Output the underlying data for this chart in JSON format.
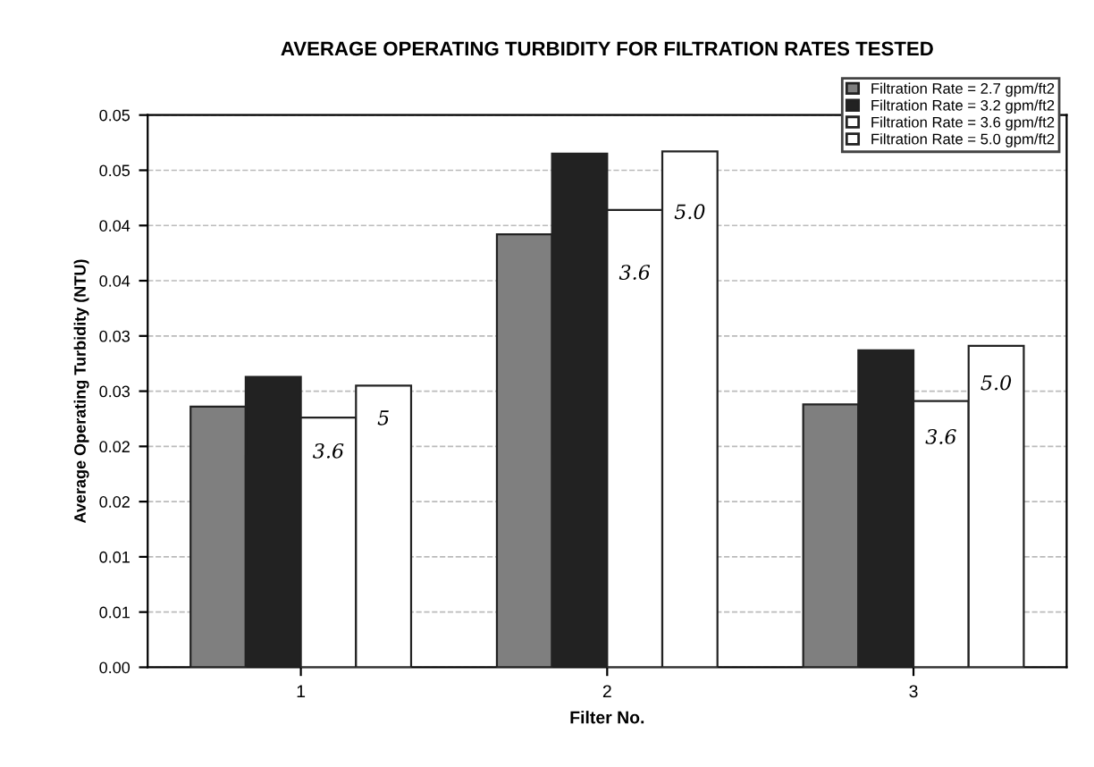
{
  "chart_data": {
    "type": "bar",
    "title": "AVERAGE OPERATING TURBIDITY FOR FILTRATION RATES TESTED",
    "xlabel": "Filter No.",
    "ylabel": "Average Operating Turbidity (NTU)",
    "categories": [
      "1",
      "2",
      "3"
    ],
    "series": [
      {
        "name": "Filtration Rate = 2.7 gpm/ft2",
        "color": "#7f7f7f",
        "values": [
          0.0236,
          0.0392,
          0.0238
        ]
      },
      {
        "name": "Filtration Rate = 3.2 gpm/ft2",
        "color": "#222222",
        "values": [
          0.0263,
          0.0465,
          0.0287
        ]
      },
      {
        "name": "Filtration Rate = 3.6 gpm/ft2",
        "color": "#ffffff",
        "values": [
          0.0226,
          0.0414,
          0.0241
        ]
      },
      {
        "name": "Filtration Rate = 5.0 gpm/ft2",
        "color": "#ffffff",
        "values": [
          0.0255,
          0.0467,
          0.0291
        ]
      }
    ],
    "ylim": [
      0,
      0.05
    ],
    "yticks": [
      {
        "value": 0,
        "label": "0.00"
      },
      {
        "value": 0.005,
        "label": "0.01"
      },
      {
        "value": 0.01,
        "label": "0.01"
      },
      {
        "value": 0.015,
        "label": "0.02"
      },
      {
        "value": 0.02,
        "label": "0.02"
      },
      {
        "value": 0.025,
        "label": "0.03"
      },
      {
        "value": 0.03,
        "label": "0.03"
      },
      {
        "value": 0.035,
        "label": "0.04"
      },
      {
        "value": 0.04,
        "label": "0.04"
      },
      {
        "value": 0.045,
        "label": "0.05"
      },
      {
        "value": 0.05,
        "label": "0.05"
      }
    ],
    "grid": "y",
    "legend": "top right",
    "annotations": [
      "3.6",
      "5",
      "3.6",
      "5.0",
      "3.6",
      "5.0"
    ]
  }
}
